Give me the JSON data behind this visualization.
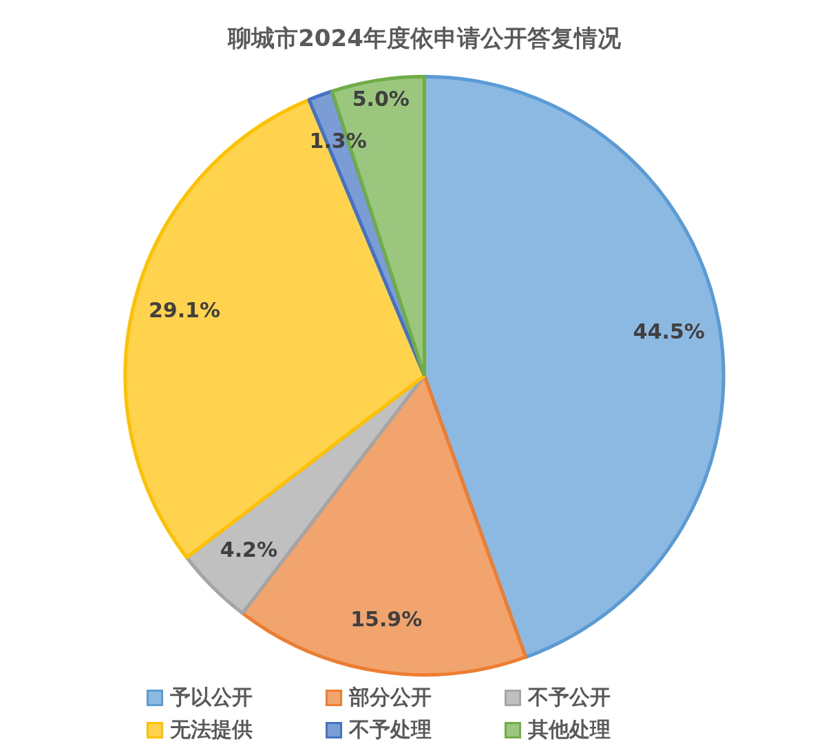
{
  "chart_data": {
    "type": "pie",
    "title": "聊城市2024年度依申请公开答复情况",
    "categories": [
      "予以公开",
      "部分公开",
      "不予公开",
      "无法提供",
      "不予处理",
      "其他处理"
    ],
    "values": [
      44.5,
      15.9,
      4.2,
      29.1,
      1.3,
      5.0
    ],
    "colors": [
      "#5b9bd5",
      "#ed7d31",
      "#a5a5a5",
      "#ffc000",
      "#4472c4",
      "#70ad47"
    ],
    "value_labels": [
      "44.5%",
      "15.9%",
      "4.2%",
      "29.1%",
      "1.3%",
      "5.0%"
    ],
    "legend": "bottom"
  }
}
